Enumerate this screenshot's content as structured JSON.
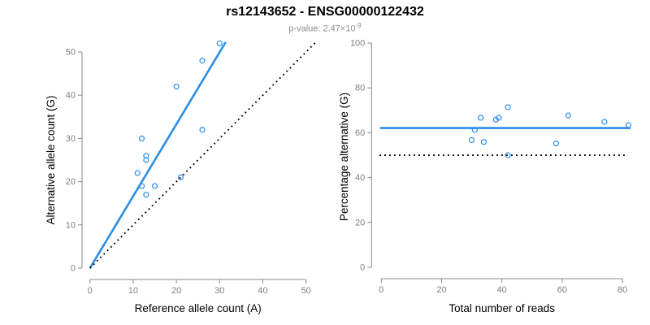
{
  "header": {
    "title": "rs12143652 - ENSG00000122432",
    "subtitle_prefix": "p-value: 2.47×10",
    "subtitle_exponent": "-9"
  },
  "colors": {
    "accent_blue": "#2a8de8",
    "point_blue": "#2a8de8",
    "dotted_black": "#000000",
    "axis_gray": "#888888",
    "tick_label_gray": "#7f7f7f",
    "axis_title_black": "#000000",
    "title_black": "#000000",
    "subtitle_gray": "#8c8c8c"
  },
  "chart_data": [
    {
      "type": "scatter",
      "xlabel": "Reference allele count (A)",
      "ylabel": "Alternative allele count (G)",
      "xlim": [
        0,
        50
      ],
      "ylim": [
        0,
        50
      ],
      "xticks": [
        0,
        10,
        20,
        30,
        40,
        50
      ],
      "yticks": [
        0,
        10,
        20,
        30,
        40,
        50
      ],
      "grid": false,
      "legend": null,
      "points": [
        [
          30,
          52
        ],
        [
          26,
          48
        ],
        [
          20,
          42
        ],
        [
          26,
          32
        ],
        [
          12,
          30
        ],
        [
          13,
          26
        ],
        [
          13,
          25
        ],
        [
          11,
          22
        ],
        [
          21,
          21
        ],
        [
          15,
          19
        ],
        [
          12,
          19
        ],
        [
          13,
          17
        ]
      ],
      "lines": [
        {
          "name": "fit-line",
          "slope": 1.665,
          "intercept": 0,
          "color": "#2a8de8",
          "style": "solid"
        },
        {
          "name": "identity-line",
          "slope": 1,
          "intercept": 0,
          "color": "#000000",
          "style": "dotted"
        }
      ]
    },
    {
      "type": "scatter",
      "xlabel": "Total number of reads",
      "ylabel": "Percentage alternative (G)",
      "xlim": [
        0,
        80
      ],
      "ylim": [
        0,
        100
      ],
      "xticks": [
        0,
        20,
        40,
        60,
        80
      ],
      "yticks": [
        0,
        20,
        40,
        60,
        80,
        100
      ],
      "grid": false,
      "legend": null,
      "points": [
        [
          82,
          63.4
        ],
        [
          74,
          64.9
        ],
        [
          62,
          67.7
        ],
        [
          58,
          55.2
        ],
        [
          42,
          71.4
        ],
        [
          42,
          50
        ],
        [
          39,
          66.7
        ],
        [
          38,
          65.8
        ],
        [
          34,
          55.9
        ],
        [
          33,
          66.7
        ],
        [
          31,
          61.3
        ],
        [
          30,
          56.7
        ]
      ],
      "lines": [
        {
          "name": "mean-percentage-line",
          "y": 62.1,
          "color": "#2a8de8",
          "style": "solid"
        },
        {
          "name": "fifty-percent-line",
          "y": 50,
          "color": "#000000",
          "style": "dotted"
        }
      ]
    }
  ]
}
